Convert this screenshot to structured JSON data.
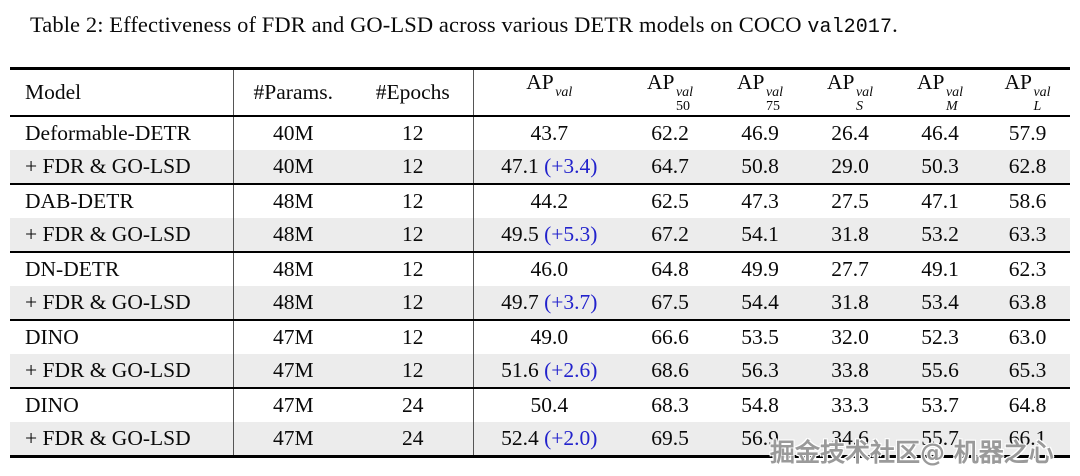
{
  "caption": {
    "prefix": "Table 2: Effectiveness of FDR and GO-LSD across various DETR models on COCO ",
    "code": "val2017",
    "suffix": "."
  },
  "watermark": "掘金技术社区@ 机器之心",
  "colors": {
    "delta_blue": "#2222cc",
    "alt_row": "#ececec",
    "rule": "#000000",
    "separator": "#555555"
  },
  "table": {
    "headers": {
      "model": "Model",
      "params": "#Params.",
      "epochs": "#Epochs",
      "ap_cols": [
        {
          "base": "AP",
          "sup": "val",
          "sub": ""
        },
        {
          "base": "AP",
          "sup": "val",
          "sub": "50"
        },
        {
          "base": "AP",
          "sup": "val",
          "sub": "75"
        },
        {
          "base": "AP",
          "sup": "val",
          "sub": "S"
        },
        {
          "base": "AP",
          "sup": "val",
          "sub": "M"
        },
        {
          "base": "AP",
          "sup": "val",
          "sub": "L"
        }
      ]
    },
    "groups": [
      {
        "rows": [
          {
            "model": "Deformable-DETR",
            "params": "40M",
            "epochs": "12",
            "ap": "43.7",
            "delta": "",
            "metrics": [
              "62.2",
              "46.9",
              "26.4",
              "46.4",
              "57.9"
            ]
          },
          {
            "model": "+ FDR & GO-LSD",
            "params": "40M",
            "epochs": "12",
            "ap": "47.1",
            "delta": "(+3.4)",
            "metrics": [
              "64.7",
              "50.8",
              "29.0",
              "50.3",
              "62.8"
            ]
          }
        ]
      },
      {
        "rows": [
          {
            "model": "DAB-DETR",
            "params": "48M",
            "epochs": "12",
            "ap": "44.2",
            "delta": "",
            "metrics": [
              "62.5",
              "47.3",
              "27.5",
              "47.1",
              "58.6"
            ]
          },
          {
            "model": "+ FDR & GO-LSD",
            "params": "48M",
            "epochs": "12",
            "ap": "49.5",
            "delta": "(+5.3)",
            "metrics": [
              "67.2",
              "54.1",
              "31.8",
              "53.2",
              "63.3"
            ]
          }
        ]
      },
      {
        "rows": [
          {
            "model": "DN-DETR",
            "params": "48M",
            "epochs": "12",
            "ap": "46.0",
            "delta": "",
            "metrics": [
              "64.8",
              "49.9",
              "27.7",
              "49.1",
              "62.3"
            ]
          },
          {
            "model": "+ FDR & GO-LSD",
            "params": "48M",
            "epochs": "12",
            "ap": "49.7",
            "delta": "(+3.7)",
            "metrics": [
              "67.5",
              "54.4",
              "31.8",
              "53.4",
              "63.8"
            ]
          }
        ]
      },
      {
        "rows": [
          {
            "model": "DINO",
            "params": "47M",
            "epochs": "12",
            "ap": "49.0",
            "delta": "",
            "metrics": [
              "66.6",
              "53.5",
              "32.0",
              "52.3",
              "63.0"
            ]
          },
          {
            "model": "+ FDR & GO-LSD",
            "params": "47M",
            "epochs": "12",
            "ap": "51.6",
            "delta": "(+2.6)",
            "metrics": [
              "68.6",
              "56.3",
              "33.8",
              "55.6",
              "65.3"
            ]
          }
        ]
      },
      {
        "rows": [
          {
            "model": "DINO",
            "params": "47M",
            "epochs": "24",
            "ap": "50.4",
            "delta": "",
            "metrics": [
              "68.3",
              "54.8",
              "33.3",
              "53.7",
              "64.8"
            ]
          },
          {
            "model": "+ FDR & GO-LSD",
            "params": "47M",
            "epochs": "24",
            "ap": "52.4",
            "delta": "(+2.0)",
            "metrics": [
              "69.5",
              "56.9",
              "34.6",
              "55.7",
              "66.1"
            ]
          }
        ]
      }
    ]
  }
}
